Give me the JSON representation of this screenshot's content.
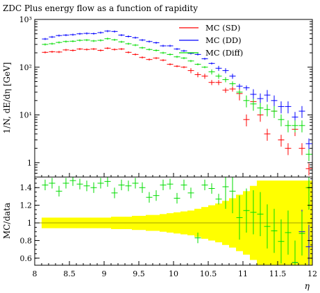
{
  "chart_data": {
    "type": "scatter",
    "title": "ZDC Plus energy flow as a function of rapidity",
    "xlabel": "η",
    "ylabel_main": "1/N, dE/dη [GeV]",
    "ylabel_ratio": "MC/data",
    "x_range": [
      8,
      12
    ],
    "main_y_range": [
      0.5,
      1000
    ],
    "main_y_scale": "log",
    "ratio_y_range": [
      0.52,
      1.52
    ],
    "x_ticks": [
      "8",
      "8.5",
      "9",
      "9.5",
      "10",
      "10.5",
      "11",
      "11.5",
      "12"
    ],
    "main_y_ticks": [
      {
        "value": 1,
        "label": "1"
      },
      {
        "value": 10,
        "label": "10¹"
      },
      {
        "value": 100,
        "label": "10²"
      },
      {
        "value": 1000,
        "label": "10³"
      }
    ],
    "ratio_y_ticks": [
      "0.6",
      "0.8",
      "1",
      "1.2",
      "1.4"
    ],
    "legend_position": "top-right",
    "series": [
      {
        "name": "MC (SD)",
        "color": "#ff0000",
        "points": [
          [
            8.15,
            205
          ],
          [
            8.25,
            210
          ],
          [
            8.35,
            208
          ],
          [
            8.45,
            230
          ],
          [
            8.55,
            225
          ],
          [
            8.65,
            240
          ],
          [
            8.75,
            235
          ],
          [
            8.85,
            240
          ],
          [
            8.95,
            225
          ],
          [
            9.05,
            250
          ],
          [
            9.15,
            235
          ],
          [
            9.25,
            240
          ],
          [
            9.35,
            205
          ],
          [
            9.45,
            185
          ],
          [
            9.55,
            160
          ],
          [
            9.65,
            145
          ],
          [
            9.75,
            155
          ],
          [
            9.85,
            140
          ],
          [
            9.95,
            115
          ],
          [
            10.05,
            105
          ],
          [
            10.15,
            100
          ],
          [
            10.25,
            85
          ],
          [
            10.35,
            70
          ],
          [
            10.45,
            65
          ],
          [
            10.55,
            48
          ],
          [
            10.65,
            48
          ],
          [
            10.75,
            33
          ],
          [
            10.85,
            35
          ],
          [
            10.95,
            28
          ],
          [
            11.05,
            8
          ],
          [
            11.15,
            19
          ],
          [
            11.25,
            10
          ],
          [
            11.35,
            4
          ],
          [
            11.45,
            12
          ],
          [
            11.55,
            3
          ],
          [
            11.65,
            2
          ],
          [
            11.75,
            5
          ],
          [
            11.85,
            2
          ],
          [
            11.95,
            0.75
          ]
        ],
        "ratio": [
          null,
          null,
          null,
          null,
          null,
          null,
          null,
          null,
          null,
          null,
          null,
          null,
          null,
          null,
          null,
          null,
          null,
          null,
          null,
          null,
          null,
          null,
          null,
          null,
          null,
          null,
          null,
          null,
          null,
          null,
          null,
          null,
          null,
          null,
          null,
          null,
          null,
          null,
          null
        ]
      },
      {
        "name": "MC (DD)",
        "color": "#0000ff",
        "points": [
          [
            8.15,
            390
          ],
          [
            8.25,
            430
          ],
          [
            8.35,
            460
          ],
          [
            8.45,
            470
          ],
          [
            8.55,
            480
          ],
          [
            8.65,
            500
          ],
          [
            8.75,
            510
          ],
          [
            8.85,
            505
          ],
          [
            8.95,
            530
          ],
          [
            9.05,
            570
          ],
          [
            9.15,
            560
          ],
          [
            9.25,
            470
          ],
          [
            9.35,
            440
          ],
          [
            9.45,
            415
          ],
          [
            9.55,
            370
          ],
          [
            9.65,
            345
          ],
          [
            9.75,
            325
          ],
          [
            9.85,
            280
          ],
          [
            9.95,
            280
          ],
          [
            10.05,
            240
          ],
          [
            10.15,
            220
          ],
          [
            10.25,
            195
          ],
          [
            10.35,
            185
          ],
          [
            10.45,
            150
          ],
          [
            10.55,
            120
          ],
          [
            10.65,
            95
          ],
          [
            10.75,
            85
          ],
          [
            10.85,
            65
          ],
          [
            10.95,
            40
          ],
          [
            11.05,
            37
          ],
          [
            11.15,
            27
          ],
          [
            11.25,
            22
          ],
          [
            11.35,
            26
          ],
          [
            11.45,
            20
          ],
          [
            11.55,
            15
          ],
          [
            11.65,
            15
          ],
          [
            11.75,
            9
          ],
          [
            11.85,
            12
          ],
          [
            11.95,
            2.5
          ]
        ],
        "ratio": [
          null,
          null,
          null,
          null,
          null,
          null,
          null,
          null,
          null,
          null,
          null,
          null,
          null,
          null,
          null,
          null,
          null,
          null,
          null,
          null,
          null,
          null,
          null,
          null,
          null,
          null,
          null,
          null,
          null,
          null,
          null,
          null,
          null,
          null,
          null,
          null,
          0.55,
          0.9,
          0.73
        ]
      },
      {
        "name": "MC (Diff)",
        "color": "#00dd00",
        "points": [
          [
            8.15,
            300
          ],
          [
            8.25,
            310
          ],
          [
            8.35,
            330
          ],
          [
            8.45,
            345
          ],
          [
            8.55,
            350
          ],
          [
            8.65,
            365
          ],
          [
            8.75,
            370
          ],
          [
            8.85,
            355
          ],
          [
            8.95,
            365
          ],
          [
            9.05,
            395
          ],
          [
            9.15,
            375
          ],
          [
            9.25,
            340
          ],
          [
            9.35,
            310
          ],
          [
            9.45,
            290
          ],
          [
            9.55,
            255
          ],
          [
            9.65,
            235
          ],
          [
            9.75,
            225
          ],
          [
            9.85,
            200
          ],
          [
            9.95,
            185
          ],
          [
            10.05,
            165
          ],
          [
            10.15,
            155
          ],
          [
            10.25,
            135
          ],
          [
            10.35,
            115
          ],
          [
            10.45,
            100
          ],
          [
            10.55,
            80
          ],
          [
            10.65,
            65
          ],
          [
            10.75,
            55
          ],
          [
            10.85,
            45
          ],
          [
            10.95,
            30
          ],
          [
            11.05,
            20
          ],
          [
            11.15,
            17
          ],
          [
            11.25,
            14
          ],
          [
            11.35,
            13
          ],
          [
            11.45,
            12
          ],
          [
            11.55,
            8
          ],
          [
            11.65,
            6
          ],
          [
            11.75,
            6
          ],
          [
            11.85,
            6
          ],
          [
            11.95,
            1.5
          ]
        ],
        "ratio": [
          1.43,
          1.45,
          1.36,
          1.45,
          1.48,
          1.44,
          1.42,
          1.4,
          1.45,
          1.47,
          1.34,
          1.43,
          1.42,
          1.45,
          1.4,
          1.29,
          1.31,
          1.43,
          1.44,
          1.28,
          1.43,
          1.34,
          0.83,
          1.43,
          1.39,
          1.27,
          1.41,
          1.36,
          1.06,
          1.14,
          1.12,
          1.1,
          0.96,
          0.91,
          0.79,
          0.89,
          0.55,
          0.88,
          1.4
        ]
      }
    ],
    "reference": {
      "color": "#ffff00",
      "line_color": "#a0a000",
      "value": 1,
      "band": [
        0.06,
        0.06,
        0.06,
        0.06,
        0.06,
        0.06,
        0.06,
        0.06,
        0.06,
        0.06,
        0.07,
        0.07,
        0.07,
        0.08,
        0.08,
        0.09,
        0.09,
        0.1,
        0.11,
        0.12,
        0.13,
        0.14,
        0.16,
        0.18,
        0.2,
        0.22,
        0.25,
        0.28,
        0.32,
        0.36,
        0.42,
        0.48,
        0.48,
        0.48,
        0.48,
        0.48,
        0.48,
        0.48,
        0.48
      ]
    }
  }
}
